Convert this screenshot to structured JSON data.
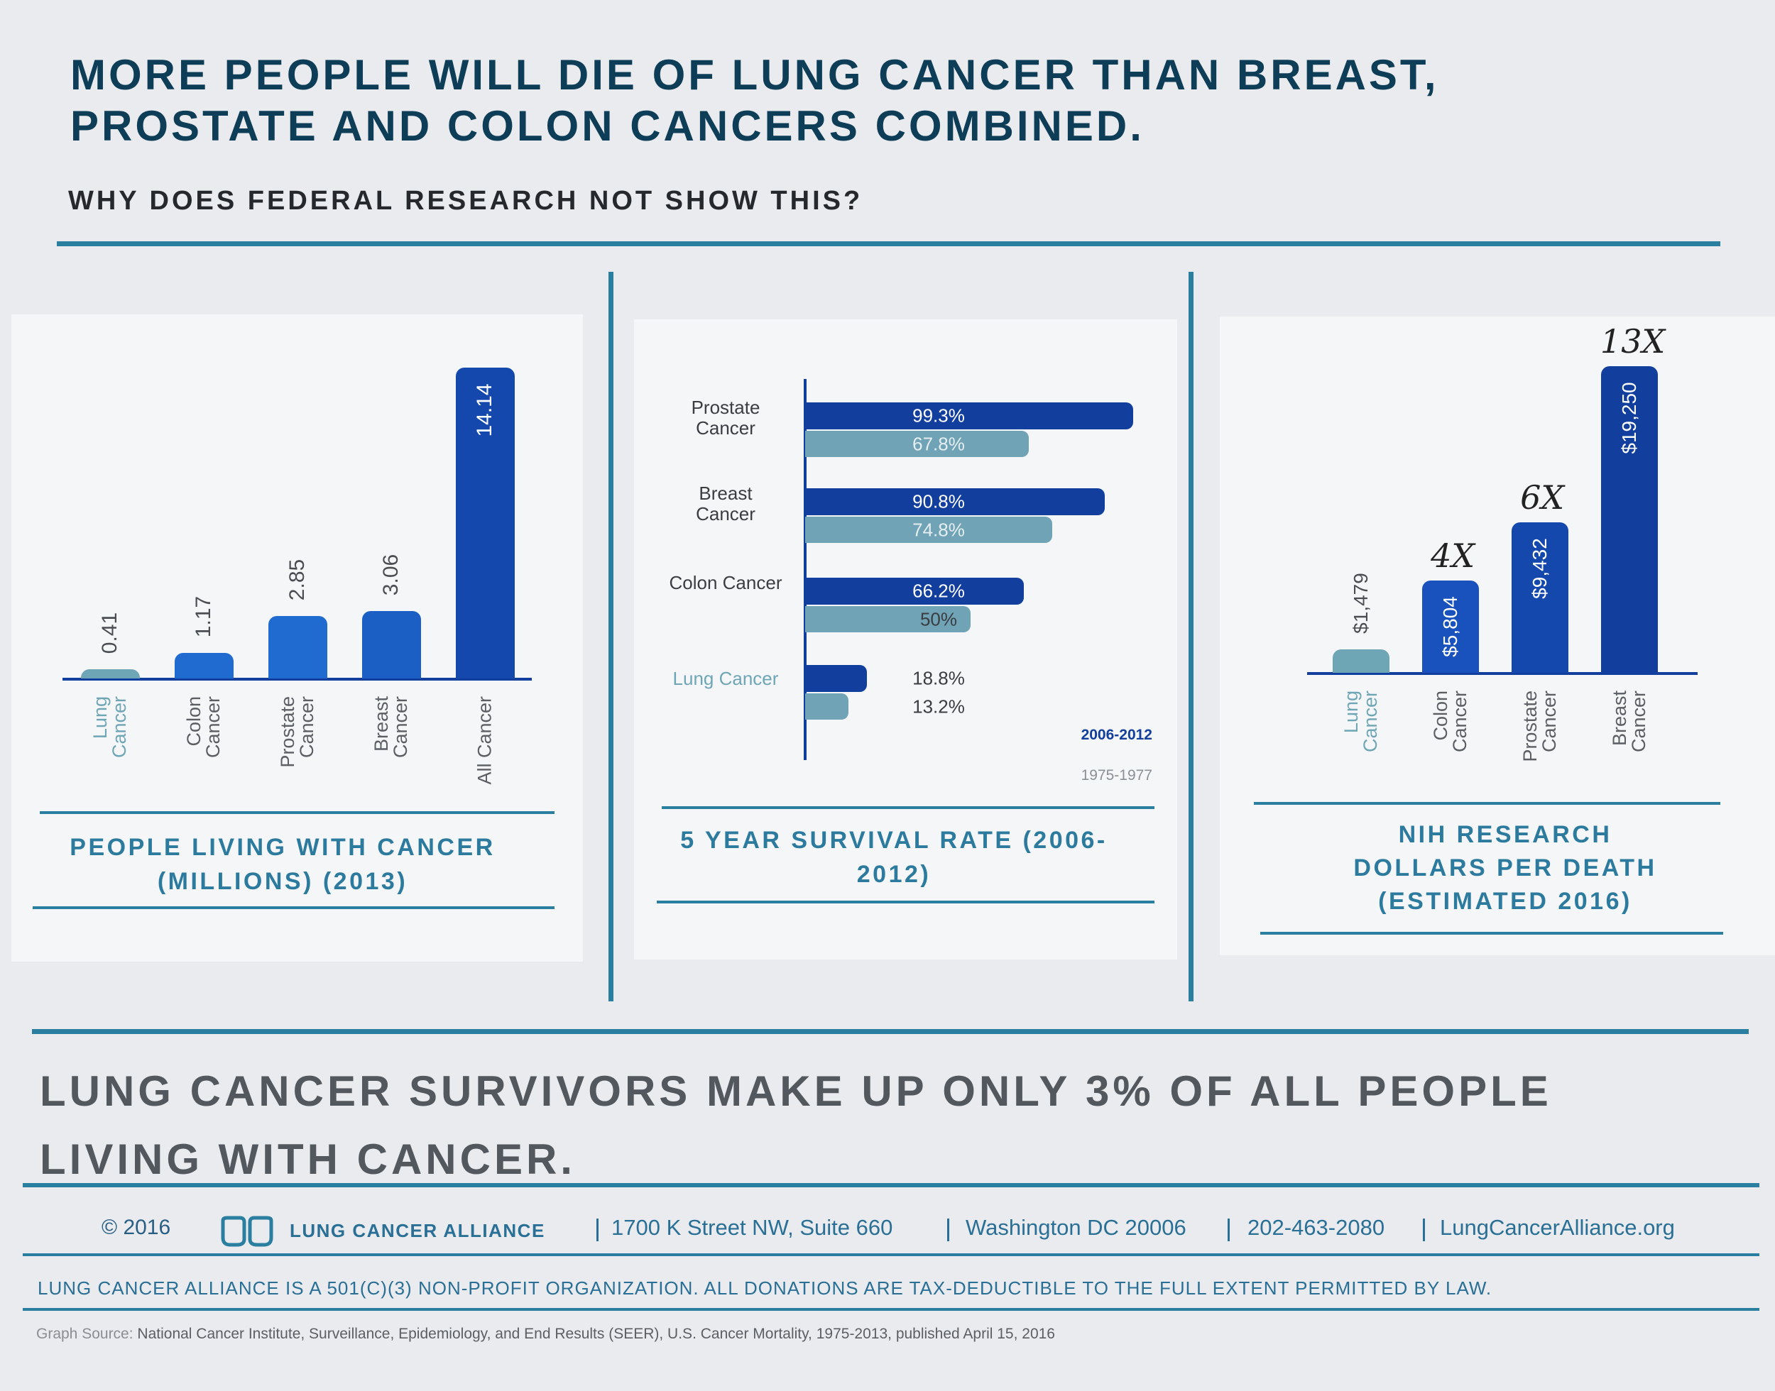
{
  "header": {
    "title": "MORE PEOPLE WILL DIE OF LUNG CANCER THAN BREAST, PROSTATE AND COLON CANCERS COMBINED.",
    "subtitle": "WHY DOES FEDERAL RESEARCH NOT SHOW THIS?"
  },
  "chart_data": [
    {
      "type": "bar",
      "title": "PEOPLE LIVING WITH CANCER (MILLIONS) (2013)",
      "categories": [
        "Lung Cancer",
        "Colon Cancer",
        "Prostate Cancer",
        "Breast Cancer",
        "All Cancer"
      ],
      "values": [
        0.41,
        1.17,
        2.85,
        3.06,
        14.14
      ],
      "colors": [
        "#6fa6b6",
        "#1f6bd0",
        "#1f6bd0",
        "#1b5fc4",
        "#1448ad"
      ],
      "label_colors": [
        "#6fa6b6",
        "#5b5f64",
        "#5b5f64",
        "#5b5f64",
        "#5b5f64"
      ]
    },
    {
      "type": "barh",
      "title": "5 YEAR SURVIVAL RATE (2006-2012)",
      "categories": [
        "Prostate Cancer",
        "Breast Cancer",
        "Colon Cancer",
        "Lung Cancer"
      ],
      "series": [
        {
          "name": "2006-2012",
          "color": "#123f9e",
          "values": [
            99.3,
            90.8,
            66.2,
            18.8
          ],
          "value_labels": [
            "99.3%",
            "90.8%",
            "66.2%",
            "18.8%"
          ]
        },
        {
          "name": "1975-1977",
          "color": "#6fa3b5",
          "values": [
            67.8,
            74.8,
            50,
            13.2
          ],
          "value_labels": [
            "67.8%",
            "74.8%",
            "50%",
            "13.2%"
          ]
        }
      ],
      "label_colors": [
        "#3a3d42",
        "#3a3d42",
        "#3a3d42",
        "#6fa6b6"
      ],
      "legend": "lower right"
    },
    {
      "type": "bar",
      "title": "NIH RESEARCH DOLLARS PER DEATH (ESTIMATED 2016)",
      "categories": [
        "Lung Cancer",
        "Colon Cancer",
        "Prostate Cancer",
        "Breast Cancer"
      ],
      "values": [
        1479,
        5804,
        9432,
        19250
      ],
      "value_labels": [
        "$1,479",
        "$5,804",
        "$9,432",
        "$19,250"
      ],
      "colors": [
        "#6fa6b6",
        "#1a52bd",
        "#1448ad",
        "#123f9e"
      ],
      "label_colors": [
        "#6fa6b6",
        "#5b5f64",
        "#5b5f64",
        "#5b5f64"
      ],
      "annotations": [
        {
          "category": "Colon Cancer",
          "text": "4X"
        },
        {
          "category": "Prostate Cancer",
          "text": "6X"
        },
        {
          "category": "Breast Cancer",
          "text": "13X"
        }
      ]
    }
  ],
  "statement": "LUNG CANCER SURVIVORS MAKE UP ONLY 3% OF ALL PEOPLE LIVING WITH CANCER.",
  "footer": {
    "copyright": "© 2016",
    "organization": "LUNG CANCER ALLIANCE",
    "contact": [
      "1700 K Street NW,  Suite 660",
      "Washington DC 20006",
      "202-463-2080",
      "LungCancerAlliance.org"
    ],
    "disclaimer": "LUNG CANCER ALLIANCE IS A 501(C)(3) NON-PROFIT ORGANIZATION. ALL DONATIONS ARE TAX-DEDUCTIBLE TO THE FULL EXTENT PERMITTED BY LAW.",
    "source_label": "Graph Source:",
    "source": "National Cancer Institute, Surveillance, Epidemiology, and End Results (SEER), U.S. Cancer Mortality, 1975-2013, published April 15, 2016"
  }
}
